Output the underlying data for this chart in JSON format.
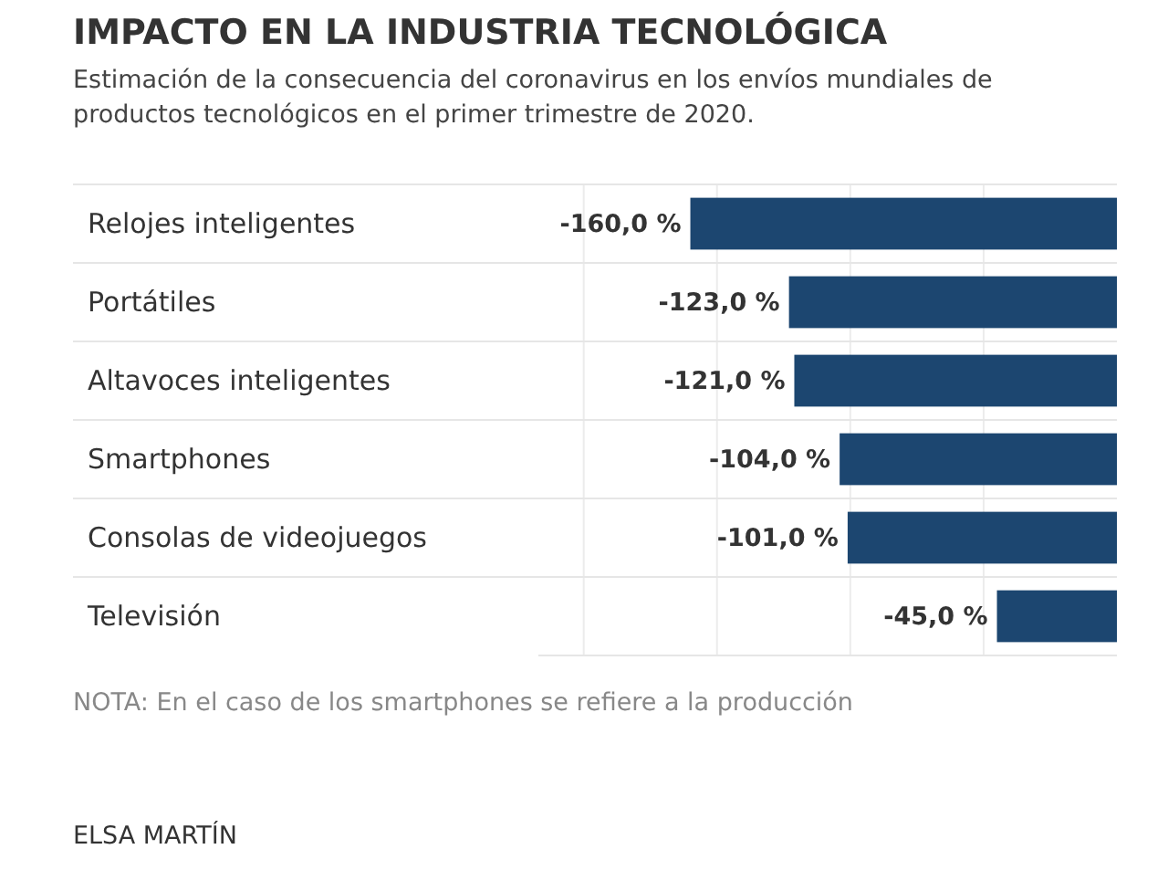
{
  "chart_data": {
    "type": "bar",
    "orientation": "horizontal",
    "title": "IMPACTO EN LA INDUSTRIA TECNOLÓGICA",
    "subtitle": "Estimación de la consecuencia del coronavirus en los envíos mundiales de productos tecnológicos en el primer trimestre de 2020.",
    "categories": [
      "Relojes inteligentes",
      "Portátiles",
      "Altavoces inteligentes",
      "Smartphones",
      "Consolas de videojuegos",
      "Televisión"
    ],
    "values": [
      -160,
      -123,
      -121,
      -104,
      -101,
      -45
    ],
    "value_labels": [
      "-160,0 %",
      "-123,0 %",
      "-121,0 %",
      "-104,0 %",
      "-101,0 %",
      "-45,0 %"
    ],
    "color": "#1c4670",
    "xlim": [
      -217,
      0
    ],
    "xticks": [
      {
        "value": -200,
        "label": null
      },
      {
        "value": -150,
        "label": null
      },
      {
        "value": -100,
        "label": null
      },
      {
        "value": -50,
        "label": null
      }
    ],
    "tick_labels": "y",
    "grid": "x",
    "annotations": [
      "NOTA: En el caso de los smartphones se refiere a la producción",
      "ELSA MARTÍN"
    ]
  }
}
